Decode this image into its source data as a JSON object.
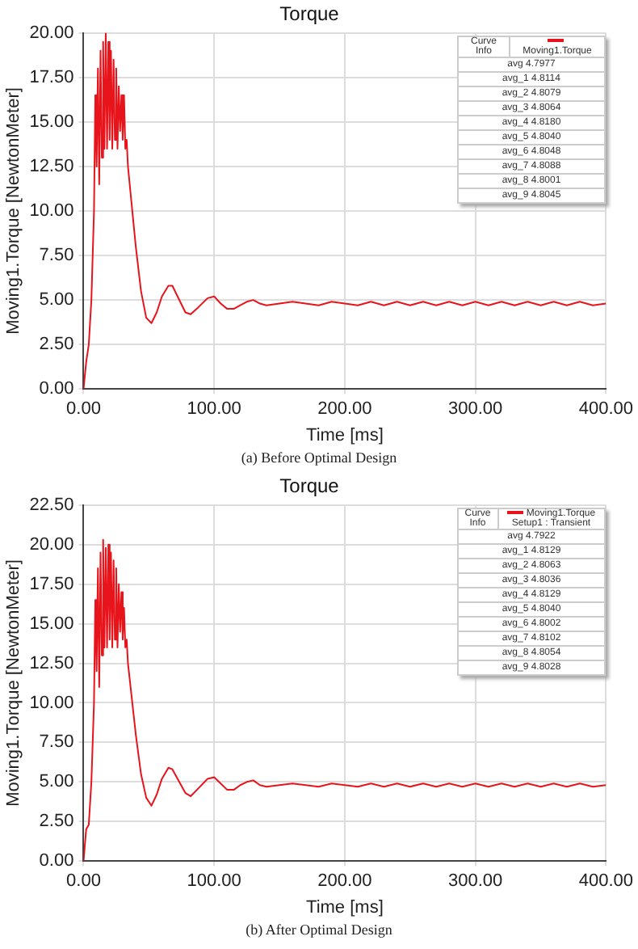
{
  "chart_data": [
    {
      "type": "line",
      "title": "Torque",
      "xlabel": "Time [ms]",
      "ylabel": "Moving1.Torque [NewtonMeter]",
      "legend": "top right",
      "legend_title": "Curve Info",
      "grid": true,
      "marker": "none",
      "line_style": "solid",
      "x": [
        0,
        2,
        4,
        6,
        8,
        9,
        10,
        11,
        12,
        13,
        14,
        15,
        16,
        17,
        18,
        19,
        20,
        21,
        22,
        23,
        24,
        25,
        26,
        27,
        28,
        29,
        30,
        31,
        32,
        33,
        34,
        36,
        40,
        44,
        48,
        52,
        56,
        60,
        65,
        68,
        72,
        78,
        82,
        88,
        95,
        100,
        105,
        110,
        115,
        120,
        125,
        130,
        135,
        140,
        150,
        160,
        170,
        180,
        190,
        200,
        210,
        220,
        230,
        240,
        250,
        260,
        270,
        280,
        290,
        300,
        310,
        320,
        330,
        340,
        350,
        360,
        370,
        380,
        390,
        400
      ],
      "series": [
        {
          "name": "Moving1.Torque",
          "color": "#e8141b",
          "values": [
            0,
            1.5,
            2.5,
            5,
            10,
            16.5,
            12.5,
            18,
            11.5,
            19,
            13,
            19.5,
            13.5,
            20,
            13.5,
            19.5,
            14,
            19,
            13.5,
            18.5,
            14,
            18,
            13.5,
            17,
            14.5,
            16.5,
            14,
            16.5,
            13.5,
            14,
            12.5,
            11,
            8,
            5.5,
            4,
            3.7,
            4.3,
            5.2,
            5.8,
            5.8,
            5.2,
            4.3,
            4.2,
            4.6,
            5.1,
            5.2,
            4.8,
            4.5,
            4.5,
            4.7,
            4.9,
            5,
            4.8,
            4.7,
            4.8,
            4.9,
            4.8,
            4.7,
            4.9,
            4.8,
            4.7,
            4.9,
            4.7,
            4.9,
            4.7,
            4.9,
            4.7,
            4.9,
            4.7,
            4.9,
            4.7,
            4.9,
            4.7,
            4.9,
            4.7,
            4.9,
            4.7,
            4.9,
            4.7,
            4.8
          ]
        }
      ],
      "xlim": [
        0,
        400
      ],
      "xticks": [
        {
          "value": 0,
          "label": "0.00"
        },
        {
          "value": 100,
          "label": "100.00"
        },
        {
          "value": 200,
          "label": "200.00"
        },
        {
          "value": 300,
          "label": "300.00"
        },
        {
          "value": 400,
          "label": "400.00"
        }
      ],
      "ylim": [
        0,
        20
      ],
      "yticks": [
        {
          "value": 0,
          "label": "0.00"
        },
        {
          "value": 2.5,
          "label": "2.50"
        },
        {
          "value": 5,
          "label": "5.00"
        },
        {
          "value": 7.5,
          "label": "7.50"
        },
        {
          "value": 10,
          "label": "10.00"
        },
        {
          "value": 12.5,
          "label": "12.50"
        },
        {
          "value": 15,
          "label": "15.00"
        },
        {
          "value": 17.5,
          "label": "17.50"
        },
        {
          "value": 20,
          "label": "20.00"
        }
      ],
      "annotations": [
        "avg 4.7977",
        "avg_1 4.8114",
        "avg_2 4.8079",
        "avg_3 4.8064",
        "avg_4 4.8180",
        "avg_5 4.8040",
        "avg_6 4.8048",
        "avg_7 4.8088",
        "avg_8 4.8001",
        "avg_9 4.8045",
        "(a) Before Optimal Design"
      ]
    },
    {
      "type": "line",
      "title": "Torque",
      "xlabel": "Time [ms]",
      "ylabel": "Moving1.Torque [NewtonMeter]",
      "legend": "top right",
      "legend_title": "Curve Info",
      "grid": true,
      "marker": "none",
      "line_style": "solid",
      "x": [
        0,
        2,
        4,
        6,
        8,
        9,
        10,
        11,
        12,
        13,
        14,
        15,
        16,
        17,
        18,
        19,
        20,
        21,
        22,
        23,
        24,
        25,
        26,
        27,
        28,
        29,
        30,
        31,
        32,
        33,
        34,
        36,
        40,
        44,
        48,
        52,
        56,
        60,
        65,
        68,
        72,
        78,
        82,
        88,
        95,
        100,
        105,
        110,
        115,
        120,
        125,
        130,
        135,
        140,
        150,
        160,
        170,
        180,
        190,
        200,
        210,
        220,
        230,
        240,
        250,
        260,
        270,
        280,
        290,
        300,
        310,
        320,
        330,
        340,
        350,
        360,
        370,
        380,
        390,
        400
      ],
      "series": [
        {
          "name": "Moving1.Torque Setup1 : Transient",
          "color": "#e8141b",
          "values": [
            0,
            2,
            2.3,
            5,
            10,
            16.5,
            12,
            18.5,
            11,
            19.5,
            13,
            20.3,
            13.5,
            19.8,
            13.5,
            20,
            14,
            19.5,
            13.5,
            19,
            14,
            18.5,
            13.5,
            17.5,
            14.5,
            17,
            14,
            16,
            13.5,
            14,
            12.5,
            11,
            8,
            5.5,
            4,
            3.5,
            4.2,
            5.2,
            5.9,
            5.8,
            5.2,
            4.3,
            4.1,
            4.6,
            5.2,
            5.3,
            4.9,
            4.5,
            4.5,
            4.8,
            5,
            5.1,
            4.8,
            4.7,
            4.8,
            4.9,
            4.8,
            4.7,
            4.9,
            4.8,
            4.7,
            4.9,
            4.7,
            4.9,
            4.7,
            4.9,
            4.7,
            4.9,
            4.7,
            4.9,
            4.7,
            4.9,
            4.7,
            4.9,
            4.7,
            4.9,
            4.7,
            4.9,
            4.7,
            4.8
          ]
        }
      ],
      "xlim": [
        0,
        400
      ],
      "xticks": [
        {
          "value": 0,
          "label": "0.00"
        },
        {
          "value": 100,
          "label": "100.00"
        },
        {
          "value": 200,
          "label": "200.00"
        },
        {
          "value": 300,
          "label": "300.00"
        },
        {
          "value": 400,
          "label": "400.00"
        }
      ],
      "ylim": [
        0,
        22.5
      ],
      "yticks": [
        {
          "value": 0,
          "label": "0.00"
        },
        {
          "value": 2.5,
          "label": "2.50"
        },
        {
          "value": 5,
          "label": "5.00"
        },
        {
          "value": 7.5,
          "label": "7.50"
        },
        {
          "value": 10,
          "label": "10.00"
        },
        {
          "value": 12.5,
          "label": "12.50"
        },
        {
          "value": 15,
          "label": "15.00"
        },
        {
          "value": 17.5,
          "label": "17.50"
        },
        {
          "value": 20,
          "label": "20.00"
        },
        {
          "value": 22.5,
          "label": "22.50"
        }
      ],
      "annotations": [
        "avg 4.7922",
        "avg_1 4.8129",
        "avg_2 4.8063",
        "avg_3 4.8036",
        "avg_4 4.8129",
        "avg_5 4.8040",
        "avg_6 4.8002",
        "avg_7 4.8102",
        "avg_8 4.8054",
        "avg_9 4.8028",
        "(b) After Optimal Design"
      ]
    }
  ]
}
